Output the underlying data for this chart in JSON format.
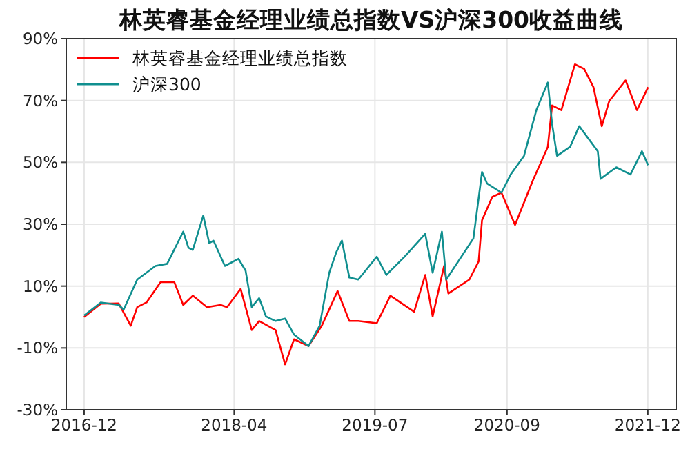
{
  "chart_data": {
    "type": "line",
    "title": "林英睿基金经理业绩总指数VS沪深300收益曲线",
    "xlim": [
      "2016-10-04",
      "2022-03-03"
    ],
    "xticks": [
      {
        "value": "2016-12-01",
        "label": "2016-12"
      },
      {
        "value": "2018-04-01",
        "label": "2018-04"
      },
      {
        "value": "2019-07-01",
        "label": "2019-07"
      },
      {
        "value": "2020-09-01",
        "label": "2020-09"
      },
      {
        "value": "2021-12-01",
        "label": "2021-12"
      }
    ],
    "ylim": [
      -30,
      90
    ],
    "yticks": [
      {
        "value": -30,
        "label": "-30%"
      },
      {
        "value": -10,
        "label": "-10%"
      },
      {
        "value": 10,
        "label": "10%"
      },
      {
        "value": 30,
        "label": "30%"
      },
      {
        "value": 50,
        "label": "50%"
      },
      {
        "value": 70,
        "label": "70%"
      },
      {
        "value": 90,
        "label": "90%"
      }
    ],
    "grid": true,
    "legend": "top left",
    "line_style": "solid",
    "marker": "none",
    "series": [
      {
        "name": "林英睿基金经理业绩总指数",
        "color": "#ff0000",
        "x": [
          "2016-12-01",
          "2017-01-24",
          "2017-03-23",
          "2017-05-01",
          "2017-05-22",
          "2017-06-21",
          "2017-08-06",
          "2017-09-19",
          "2017-10-18",
          "2017-11-18",
          "2018-01-03",
          "2018-02-16",
          "2018-03-09",
          "2018-04-22",
          "2018-05-28",
          "2018-06-21",
          "2018-08-13",
          "2018-09-13",
          "2018-10-12",
          "2018-11-28",
          "2019-01-10",
          "2019-03-02",
          "2019-04-09",
          "2019-05-08",
          "2019-07-07",
          "2019-08-20",
          "2019-11-05",
          "2019-12-11",
          "2020-01-04",
          "2020-02-10",
          "2020-02-24",
          "2020-05-02",
          "2020-06-01",
          "2020-06-12",
          "2020-07-15",
          "2020-08-14",
          "2020-09-27",
          "2020-11-26",
          "2021-01-11",
          "2021-01-25",
          "2021-02-24",
          "2021-04-09",
          "2021-05-09",
          "2021-06-08",
          "2021-07-05",
          "2021-07-29",
          "2021-09-20",
          "2021-10-27",
          "2021-12-02"
        ],
        "values": [
          0,
          4.3,
          4.4,
          -2.8,
          3.2,
          4.7,
          11.3,
          11.3,
          3.9,
          6.9,
          3.2,
          3.9,
          3.2,
          9.1,
          -4.2,
          -1.3,
          -4.2,
          -15.3,
          -7.2,
          -9.4,
          -2.8,
          8.4,
          -1.3,
          -1.3,
          -2,
          6.9,
          1.7,
          13.6,
          0.2,
          16.5,
          7.6,
          12.1,
          18,
          31.3,
          38.8,
          40.2,
          29.8,
          44.7,
          55,
          68.4,
          66.9,
          81.7,
          80.2,
          74.3,
          61.7,
          69.8,
          76.5,
          66.9,
          74.3
        ]
      },
      {
        "name": "沪深300",
        "color": "#108f8f",
        "x": [
          "2016-12-01",
          "2017-01-24",
          "2017-03-23",
          "2017-04-08",
          "2017-05-22",
          "2017-07-20",
          "2017-08-27",
          "2017-10-18",
          "2017-11-04",
          "2017-11-18",
          "2017-12-22",
          "2018-01-10",
          "2018-01-24",
          "2018-03-02",
          "2018-04-15",
          "2018-05-08",
          "2018-05-28",
          "2018-06-21",
          "2018-07-13",
          "2018-08-13",
          "2018-09-13",
          "2018-10-12",
          "2018-11-28",
          "2019-01-03",
          "2019-02-03",
          "2019-02-26",
          "2019-03-16",
          "2019-04-09",
          "2019-05-08",
          "2019-07-07",
          "2019-08-07",
          "2019-10-05",
          "2019-12-11",
          "2020-01-04",
          "2020-02-03",
          "2020-02-17",
          "2020-05-15",
          "2020-06-12",
          "2020-06-28",
          "2020-08-14",
          "2020-09-13",
          "2020-10-26",
          "2020-12-05",
          "2021-01-11",
          "2021-01-25",
          "2021-02-10",
          "2021-03-24",
          "2021-04-23",
          "2021-06-22",
          "2021-07-01",
          "2021-08-21",
          "2021-10-06",
          "2021-11-12",
          "2021-12-02"
        ],
        "values": [
          0.5,
          4.7,
          3.9,
          2.4,
          12.1,
          16.5,
          17.2,
          27.6,
          22.4,
          21.7,
          32.8,
          23.9,
          24.7,
          16.5,
          18.8,
          15,
          3.2,
          6.1,
          0.2,
          -1.3,
          -0.5,
          -5.7,
          -9.4,
          -2.8,
          14.3,
          21,
          24.7,
          12.8,
          12.1,
          19.5,
          13.6,
          19.5,
          26.9,
          14.3,
          27.6,
          12.1,
          25.4,
          46.9,
          43.2,
          40.2,
          46.1,
          52.1,
          66.9,
          75.8,
          62.4,
          52.1,
          55,
          61.7,
          53.6,
          44.7,
          48.4,
          46.1,
          53.6,
          49.1
        ]
      }
    ]
  }
}
